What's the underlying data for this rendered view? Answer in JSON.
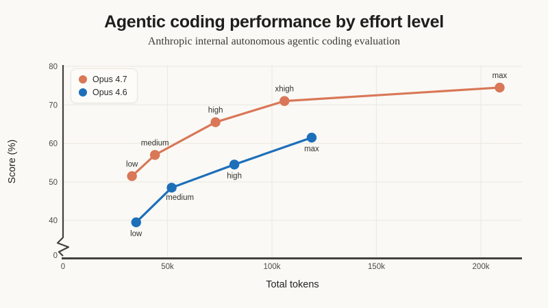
{
  "chart_data": {
    "type": "line",
    "title": "Agentic coding performance by effort level",
    "subtitle": "Anthropic internal autonomous agentic coding evaluation",
    "xlabel": "Total tokens",
    "ylabel": "Score (%)",
    "x_ticks": [
      {
        "value": 0,
        "label": "0"
      },
      {
        "value": 50000,
        "label": "50k"
      },
      {
        "value": 100000,
        "label": "100k"
      },
      {
        "value": 150000,
        "label": "150k"
      },
      {
        "value": 200000,
        "label": "200k"
      }
    ],
    "y_ticks": [
      0,
      40,
      50,
      60,
      70,
      80
    ],
    "y_axis_break": true,
    "xlim": [
      0,
      220000
    ],
    "ylim": [
      0,
      80
    ],
    "grid": true,
    "legend_position": "top-left",
    "background_color": "#faf9f5",
    "gridline_color": "#eceae2",
    "axis_color": "#43413c",
    "series": [
      {
        "name": "Opus 4.7",
        "color": "#d97757",
        "points": [
          {
            "label": "low",
            "x": 33000,
            "y": 51.5,
            "label_pos": "above"
          },
          {
            "label": "medium",
            "x": 44000,
            "y": 57,
            "label_pos": "above"
          },
          {
            "label": "high",
            "x": 73000,
            "y": 65.5,
            "label_pos": "above"
          },
          {
            "label": "xhigh",
            "x": 106000,
            "y": 71,
            "label_pos": "above"
          },
          {
            "label": "max",
            "x": 209000,
            "y": 74.5,
            "label_pos": "above"
          }
        ]
      },
      {
        "name": "Opus 4.6",
        "color": "#1e6fba",
        "points": [
          {
            "label": "low",
            "x": 35000,
            "y": 39.5,
            "label_pos": "below"
          },
          {
            "label": "medium",
            "x": 52000,
            "y": 48.5,
            "label_pos": "below-right"
          },
          {
            "label": "high",
            "x": 82000,
            "y": 54.5,
            "label_pos": "below"
          },
          {
            "label": "max",
            "x": 119000,
            "y": 61.5,
            "label_pos": "below"
          }
        ]
      }
    ]
  }
}
